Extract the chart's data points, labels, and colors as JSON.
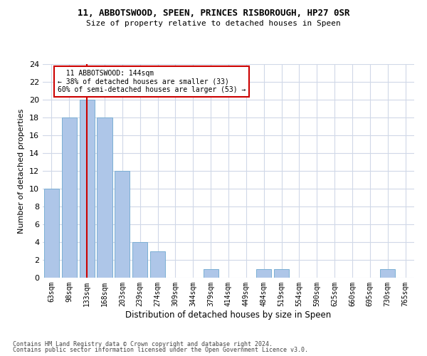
{
  "title": "11, ABBOTSWOOD, SPEEN, PRINCES RISBOROUGH, HP27 0SR",
  "subtitle": "Size of property relative to detached houses in Speen",
  "xlabel": "Distribution of detached houses by size in Speen",
  "ylabel": "Number of detached properties",
  "footer_line1": "Contains HM Land Registry data © Crown copyright and database right 2024.",
  "footer_line2": "Contains public sector information licensed under the Open Government Licence v3.0.",
  "annotation_line1": "  11 ABBOTSWOOD: 144sqm  ",
  "annotation_line2": "← 38% of detached houses are smaller (33)",
  "annotation_line3": "60% of semi-detached houses are larger (53) →",
  "bar_color": "#aec6e8",
  "bar_edge_color": "#7bafd4",
  "subject_line_color": "#cc0000",
  "annotation_box_color": "#cc0000",
  "background_color": "#ffffff",
  "grid_color": "#d0d8e8",
  "categories": [
    "63sqm",
    "98sqm",
    "133sqm",
    "168sqm",
    "203sqm",
    "239sqm",
    "274sqm",
    "309sqm",
    "344sqm",
    "379sqm",
    "414sqm",
    "449sqm",
    "484sqm",
    "519sqm",
    "554sqm",
    "590sqm",
    "625sqm",
    "660sqm",
    "695sqm",
    "730sqm",
    "765sqm"
  ],
  "values": [
    10,
    18,
    20,
    18,
    12,
    4,
    3,
    0,
    0,
    1,
    0,
    0,
    1,
    1,
    0,
    0,
    0,
    0,
    0,
    1,
    0
  ],
  "subject_bar_index": 2,
  "ylim": [
    0,
    24
  ],
  "yticks": [
    0,
    2,
    4,
    6,
    8,
    10,
    12,
    14,
    16,
    18,
    20,
    22,
    24
  ]
}
